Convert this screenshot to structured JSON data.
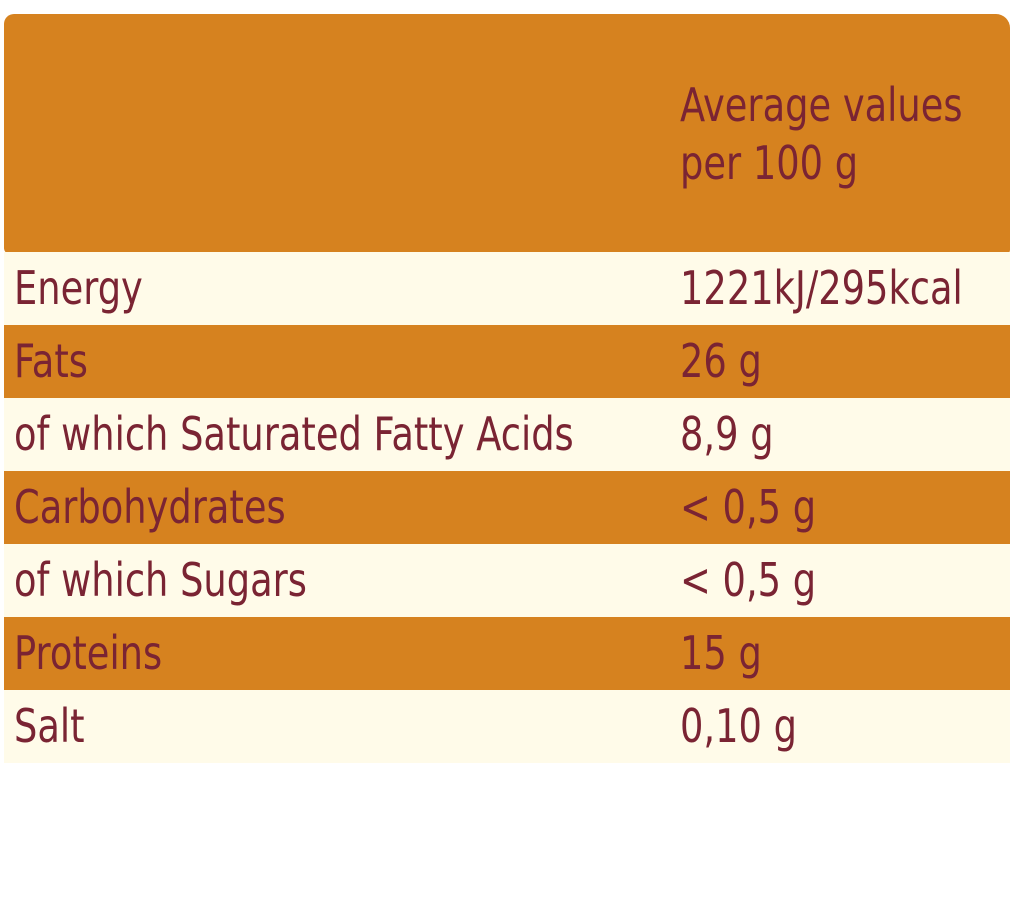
{
  "header": {
    "line1": "Average values",
    "line2": "per 100 g"
  },
  "rows": [
    {
      "name": "Energy",
      "value": "1221kJ/295kcal"
    },
    {
      "name": "Fats",
      "value": "26 g"
    },
    {
      "name": "of which Saturated Fatty Acids",
      "value": "8,9 g"
    },
    {
      "name": "Carbohydrates",
      "value": "< 0,5 g"
    },
    {
      "name": "of which Sugars",
      "value": "< 0,5 g"
    },
    {
      "name": "Proteins",
      "value": "15 g"
    },
    {
      "name": "Salt",
      "value": "0,10 g"
    }
  ],
  "colors": {
    "band": "#d6821f",
    "light": "#fffbe9",
    "text": "#7a2433"
  }
}
